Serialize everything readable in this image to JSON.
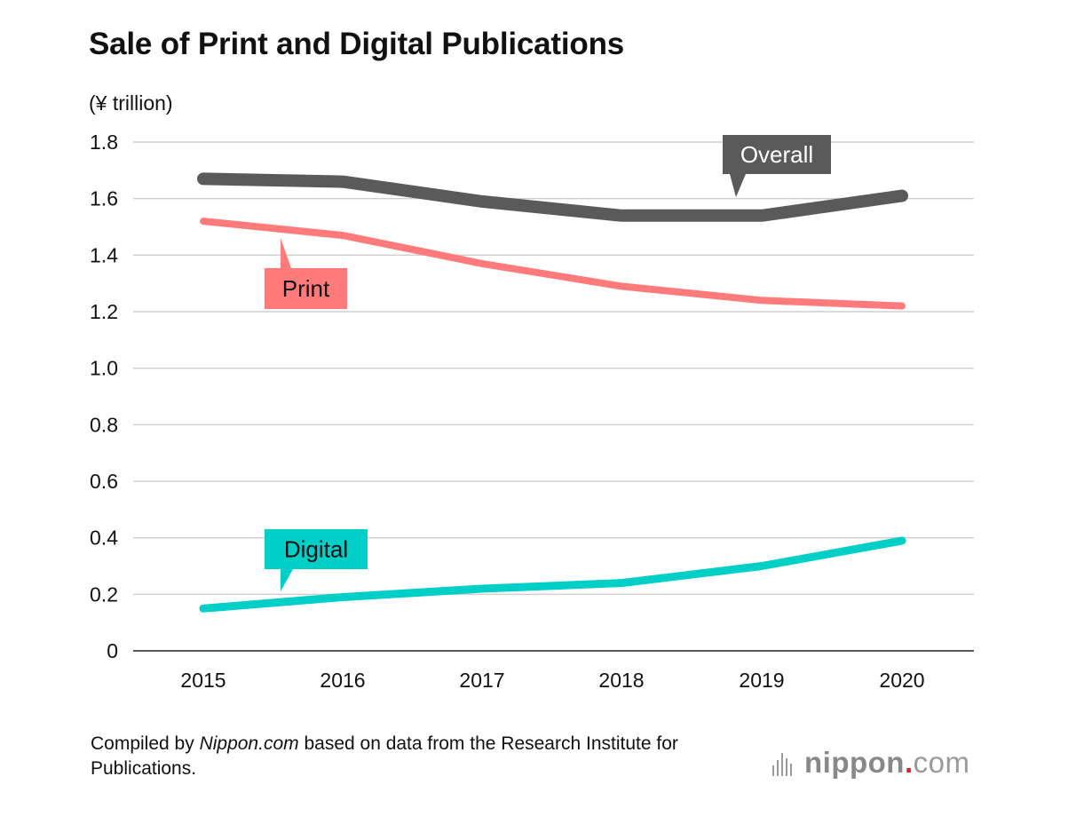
{
  "title": "Sale of Print and Digital Publications",
  "unit_label": "(¥ trillion)",
  "chart_data": {
    "type": "line",
    "title": "Sale of Print and Digital Publications",
    "ylabel": "(¥ trillion)",
    "xlabel": "",
    "categories": [
      "2015",
      "2016",
      "2017",
      "2018",
      "2019",
      "2020"
    ],
    "ylim": [
      0,
      1.8
    ],
    "yticks": [
      0,
      0.2,
      0.4,
      0.6,
      0.8,
      1.0,
      1.2,
      1.4,
      1.6,
      1.8
    ],
    "ytick_labels": [
      "0",
      "0.2",
      "0.4",
      "0.6",
      "0.8",
      "1.0",
      "1.2",
      "1.4",
      "1.6",
      "1.8"
    ],
    "grid": true,
    "legend": "inline callout labels",
    "series": [
      {
        "name": "Overall",
        "values": [
          1.67,
          1.66,
          1.59,
          1.54,
          1.54,
          1.61
        ],
        "color": "#5a5a5a"
      },
      {
        "name": "Print",
        "values": [
          1.52,
          1.47,
          1.37,
          1.29,
          1.24,
          1.22
        ],
        "color": "#ff7b7b"
      },
      {
        "name": "Digital",
        "values": [
          0.15,
          0.19,
          0.22,
          0.24,
          0.3,
          0.39
        ],
        "color": "#00cfc8"
      }
    ]
  },
  "footer": {
    "prefix": "Compiled by ",
    "source": "Nippon.com",
    "suffix": " based on data from the Research Institute for Publications."
  },
  "logo": {
    "name": "nippon",
    "dot": ".",
    "tld": "com",
    "icon": "nippon-bars-icon"
  }
}
